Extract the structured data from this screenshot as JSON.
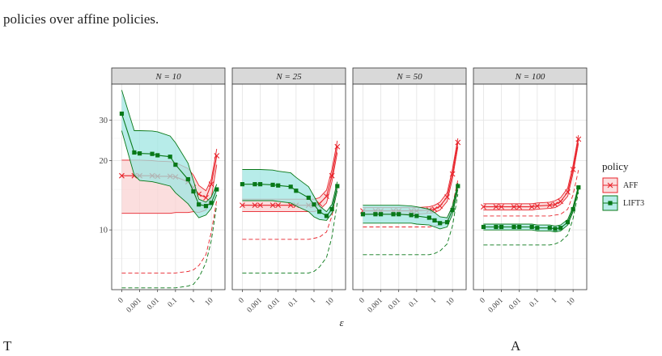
{
  "captions": {
    "top": "policies over affine policies.",
    "bottom_left": "T",
    "bottom_right": "A"
  },
  "chart_data": {
    "type": "line",
    "xlabel": "ε",
    "x_ticks": [
      "0",
      "0.001",
      "0.01",
      "0.1",
      "1",
      "10"
    ],
    "x": [
      0,
      0.0005,
      0.001,
      0.005,
      0.01,
      0.05,
      0.1,
      0.5,
      1,
      2,
      5,
      10,
      20
    ],
    "y_scale": "log",
    "y_ticks": [
      10,
      20,
      30
    ],
    "ylim": [
      5.5,
      43
    ],
    "grid": true,
    "legend": {
      "title": "policy",
      "position": "right",
      "entries": [
        "AFF",
        "LIFT3"
      ]
    },
    "colors": {
      "AFF": "#e8232b",
      "LIFT3": "#087818",
      "AFF_fill": "#f9d3d3",
      "LIFT3_fill": "#9fe5e1"
    },
    "panels": [
      {
        "title": "N = 10",
        "series": [
          {
            "name": "AFF",
            "values": [
              17.2,
              17.2,
              17.2,
              17.2,
              17.1,
              17.1,
              17.0,
              16.2,
              15.3,
              14.3,
              13.8,
              15.8,
              21.0
            ],
            "upper": [
              20.1,
              20.1,
              20.1,
              20.0,
              19.9,
              19.8,
              19.6,
              18.5,
              17.3,
              15.6,
              14.8,
              16.6,
              22.5
            ],
            "lower": [
              11.8,
              11.8,
              11.8,
              11.8,
              11.8,
              11.8,
              11.9,
              11.9,
              12.0,
              11.9,
              12.2,
              13.8,
              19.2
            ],
            "bound": [
              6.5,
              6.5,
              6.5,
              6.5,
              6.5,
              6.5,
              6.5,
              6.6,
              6.7,
              7.0,
              7.8,
              9.8,
              13.5
            ]
          },
          {
            "name": "LIFT3",
            "values": [
              32.0,
              21.7,
              21.5,
              21.4,
              21.1,
              20.8,
              19.2,
              16.6,
              14.7,
              12.9,
              12.7,
              13.1,
              15.0
            ],
            "upper": [
              40.5,
              27.0,
              27.0,
              26.9,
              26.7,
              25.6,
              23.9,
              19.5,
              16.4,
              13.6,
              13.2,
              13.9,
              15.8
            ],
            "lower": [
              27.0,
              17.3,
              16.4,
              16.2,
              16.0,
              15.5,
              14.5,
              13.0,
              12.1,
              11.3,
              11.6,
              12.4,
              14.2
            ],
            "bound": [
              5.6,
              5.6,
              5.6,
              5.6,
              5.6,
              5.6,
              5.6,
              5.7,
              5.8,
              6.2,
              7.2,
              9.0,
              12.8
            ]
          }
        ]
      },
      {
        "title": "N = 25",
        "series": [
          {
            "name": "AFF",
            "values": [
              12.8,
              12.8,
              12.8,
              12.8,
              12.8,
              12.8,
              12.8,
              12.8,
              12.8,
              13.0,
              14.0,
              17.2,
              23.0
            ],
            "upper": [
              13.6,
              13.6,
              13.6,
              13.6,
              13.6,
              13.6,
              13.6,
              13.6,
              13.6,
              13.8,
              14.9,
              18.3,
              24.4
            ],
            "lower": [
              12.0,
              12.0,
              12.0,
              12.0,
              12.0,
              12.0,
              12.0,
              12.0,
              12.0,
              12.2,
              13.1,
              16.2,
              21.7
            ],
            "bound": [
              9.1,
              9.1,
              9.1,
              9.1,
              9.1,
              9.1,
              9.1,
              9.1,
              9.2,
              9.3,
              9.8,
              11.5,
              15.0
            ]
          },
          {
            "name": "LIFT3",
            "values": [
              15.8,
              15.8,
              15.8,
              15.7,
              15.6,
              15.4,
              14.8,
              13.8,
              12.9,
              12.0,
              11.5,
              12.3,
              15.5
            ],
            "upper": [
              18.3,
              18.3,
              18.3,
              18.2,
              18.0,
              17.7,
              16.9,
              15.4,
              14.0,
              12.7,
              12.0,
              12.9,
              16.2
            ],
            "lower": [
              13.4,
              13.4,
              13.4,
              13.4,
              13.3,
              13.1,
              12.7,
              12.0,
              11.4,
              11.1,
              11.0,
              11.8,
              14.8
            ],
            "bound": [
              6.5,
              6.5,
              6.5,
              6.5,
              6.5,
              6.5,
              6.5,
              6.5,
              6.6,
              6.9,
              7.6,
              9.3,
              13.2
            ]
          }
        ]
      },
      {
        "title": "N = 50",
        "series": [
          {
            "name": "AFF",
            "values": [
              12.1,
              12.1,
              12.1,
              12.1,
              12.1,
              12.1,
              12.1,
              12.2,
              12.3,
              12.7,
              13.9,
              17.5,
              24.0
            ],
            "upper": [
              12.5,
              12.5,
              12.5,
              12.5,
              12.5,
              12.5,
              12.5,
              12.6,
              12.8,
              13.2,
              14.5,
              18.4,
              25.0
            ],
            "lower": [
              11.7,
              11.7,
              11.7,
              11.7,
              11.7,
              11.7,
              11.7,
              11.8,
              11.9,
              12.2,
              13.3,
              16.7,
              23.0
            ],
            "bound": [
              10.3,
              10.3,
              10.3,
              10.3,
              10.3,
              10.3,
              10.3,
              10.3,
              10.4,
              10.5,
              11.0,
              12.8,
              16.5
            ]
          },
          {
            "name": "LIFT3",
            "values": [
              11.7,
              11.7,
              11.7,
              11.7,
              11.7,
              11.6,
              11.5,
              11.3,
              11.0,
              10.7,
              10.8,
              12.2,
              15.5
            ],
            "upper": [
              12.8,
              12.8,
              12.8,
              12.8,
              12.8,
              12.7,
              12.6,
              12.3,
              11.9,
              11.4,
              11.3,
              12.7,
              16.0
            ],
            "lower": [
              10.7,
              10.7,
              10.7,
              10.7,
              10.7,
              10.7,
              10.6,
              10.5,
              10.3,
              10.1,
              10.3,
              11.7,
              15.0
            ],
            "bound": [
              7.8,
              7.8,
              7.8,
              7.8,
              7.8,
              7.8,
              7.8,
              7.8,
              7.9,
              8.1,
              8.7,
              10.4,
              14.3
            ]
          }
        ]
      },
      {
        "title": "N = 100",
        "series": [
          {
            "name": "AFF",
            "values": [
              12.6,
              12.6,
              12.6,
              12.6,
              12.6,
              12.6,
              12.7,
              12.8,
              12.9,
              13.3,
              14.6,
              18.3,
              24.8
            ],
            "upper": [
              13.0,
              13.0,
              13.0,
              13.0,
              13.0,
              13.0,
              13.1,
              13.2,
              13.4,
              13.8,
              15.2,
              19.1,
              25.8
            ],
            "lower": [
              12.2,
              12.2,
              12.2,
              12.2,
              12.2,
              12.2,
              12.3,
              12.4,
              12.5,
              12.9,
              14.0,
              17.6,
              23.8
            ],
            "bound": [
              11.5,
              11.5,
              11.5,
              11.5,
              11.5,
              11.5,
              11.5,
              11.5,
              11.6,
              11.7,
              12.3,
              14.2,
              18.2
            ]
          },
          {
            "name": "LIFT3",
            "values": [
              10.3,
              10.3,
              10.3,
              10.3,
              10.3,
              10.3,
              10.2,
              10.2,
              10.1,
              10.2,
              10.8,
              12.3,
              15.3
            ],
            "upper": [
              10.6,
              10.6,
              10.6,
              10.6,
              10.6,
              10.6,
              10.5,
              10.5,
              10.4,
              10.5,
              11.1,
              12.6,
              15.6
            ],
            "lower": [
              10.0,
              10.0,
              10.0,
              10.0,
              10.0,
              10.0,
              9.9,
              9.9,
              9.8,
              9.9,
              10.5,
              12.0,
              15.0
            ],
            "bound": [
              8.6,
              8.6,
              8.6,
              8.6,
              8.6,
              8.6,
              8.6,
              8.6,
              8.7,
              8.9,
              9.5,
              11.2,
              14.6
            ]
          }
        ]
      }
    ]
  }
}
